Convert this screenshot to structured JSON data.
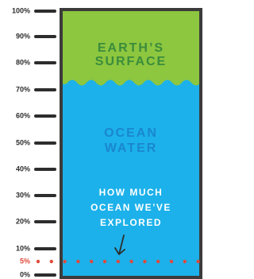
{
  "scale": {
    "labels": [
      "100%",
      "90%",
      "80%",
      "70%",
      "60%",
      "50%",
      "40%",
      "30%",
      "20%",
      "10%",
      "5%",
      "0%"
    ]
  },
  "regions": [
    {
      "lines": [
        "EARTH’S",
        "SURFACE"
      ]
    },
    {
      "lines": [
        "OCEAN",
        "WATER"
      ]
    },
    {
      "lines": [
        "HOW MUCH",
        "OCEAN WE’VE",
        "EXPLORED"
      ]
    }
  ]
}
